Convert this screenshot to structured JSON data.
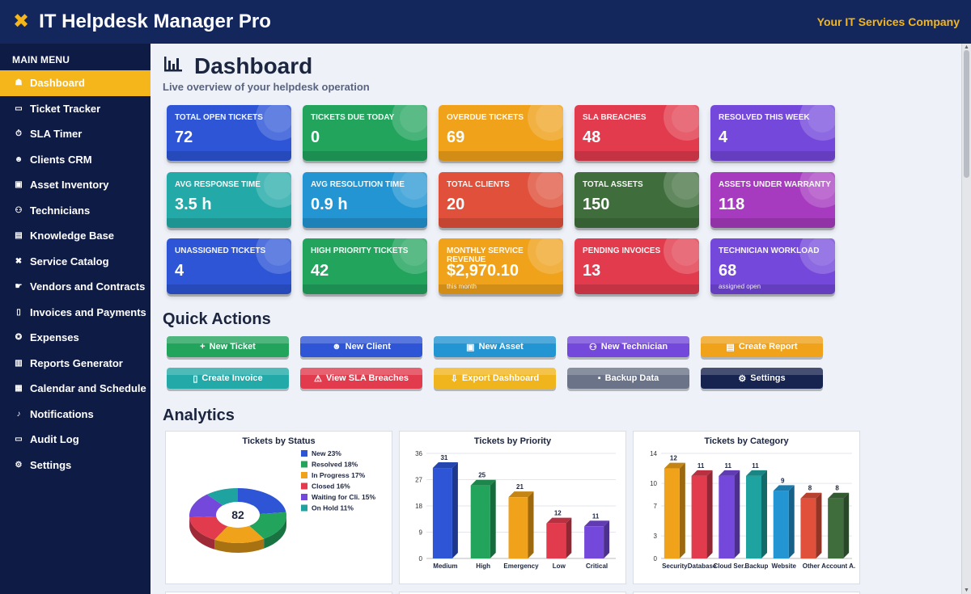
{
  "header": {
    "title": "IT Helpdesk Manager Pro",
    "company": "Your IT Services Company",
    "logo_icon": "tools-icon"
  },
  "sidebar": {
    "heading": "MAIN MENU",
    "items": [
      {
        "label": "Dashboard",
        "icon": "home-icon",
        "glyph": "☗",
        "active": true
      },
      {
        "label": "Ticket Tracker",
        "icon": "ticket-icon",
        "glyph": "▭"
      },
      {
        "label": "SLA Timer",
        "icon": "timer-icon",
        "glyph": "⏱"
      },
      {
        "label": "Clients CRM",
        "icon": "clients-icon",
        "glyph": "☻"
      },
      {
        "label": "Asset Inventory",
        "icon": "asset-icon",
        "glyph": "▣"
      },
      {
        "label": "Technicians",
        "icon": "technician-icon",
        "glyph": "⚇"
      },
      {
        "label": "Knowledge Base",
        "icon": "book-icon",
        "glyph": "▤"
      },
      {
        "label": "Service Catalog",
        "icon": "wrench-icon",
        "glyph": "✖"
      },
      {
        "label": "Vendors and Contracts",
        "icon": "handshake-icon",
        "glyph": "☛"
      },
      {
        "label": "Invoices and Payments",
        "icon": "invoice-icon",
        "glyph": "▯"
      },
      {
        "label": "Expenses",
        "icon": "expenses-icon",
        "glyph": "✪"
      },
      {
        "label": "Reports Generator",
        "icon": "chart-icon",
        "glyph": "▥"
      },
      {
        "label": "Calendar and Schedule",
        "icon": "calendar-icon",
        "glyph": "▦"
      },
      {
        "label": "Notifications",
        "icon": "bell-icon",
        "glyph": "♪"
      },
      {
        "label": "Audit Log",
        "icon": "log-icon",
        "glyph": "▭"
      },
      {
        "label": "Settings",
        "icon": "gear-icon",
        "glyph": "⚙"
      }
    ]
  },
  "page": {
    "title": "Dashboard",
    "subtitle": "Live overview of your helpdesk operation",
    "title_icon": "chart-bar-icon"
  },
  "kpis": [
    {
      "label": "TOTAL OPEN TICKETS",
      "value": "72",
      "color": "#2d55d6"
    },
    {
      "label": "TICKETS DUE TODAY",
      "value": "0",
      "color": "#22a45d"
    },
    {
      "label": "OVERDUE TICKETS",
      "value": "69",
      "color": "#f0a21a"
    },
    {
      "label": "SLA BREACHES",
      "value": "48",
      "color": "#e23b4e"
    },
    {
      "label": "RESOLVED THIS WEEK",
      "value": "4",
      "color": "#7548dc"
    },
    {
      "label": "AVG RESPONSE TIME",
      "value": "3.5 h",
      "color": "#23aaa8"
    },
    {
      "label": "AVG RESOLUTION TIME",
      "value": "0.9 h",
      "color": "#2395d3"
    },
    {
      "label": "TOTAL CLIENTS",
      "value": "20",
      "color": "#e0503a"
    },
    {
      "label": "TOTAL ASSETS",
      "value": "150",
      "color": "#3f6e3c"
    },
    {
      "label": "ASSETS UNDER WARRANTY",
      "value": "118",
      "color": "#a73bc0"
    },
    {
      "label": "UNASSIGNED TICKETS",
      "value": "4",
      "color": "#2d55d6"
    },
    {
      "label": "HIGH PRIORITY TICKETS",
      "value": "42",
      "color": "#22a45d"
    },
    {
      "label": "MONTHLY SERVICE REVENUE",
      "value": "$2,970.10",
      "note": "this month",
      "color": "#f0a21a"
    },
    {
      "label": "PENDING INVOICES",
      "value": "13",
      "color": "#e23b4e"
    },
    {
      "label": "TECHNICIAN WORKLOAD",
      "value": "68",
      "note": "assigned open",
      "color": "#7548dc"
    }
  ],
  "quick_actions": {
    "title": "Quick Actions",
    "buttons": [
      {
        "label": "New Ticket",
        "icon": "plus-icon",
        "glyph": "+",
        "color": "#22a45d"
      },
      {
        "label": "New Client",
        "icon": "clients-icon",
        "glyph": "☻",
        "color": "#2d55d6"
      },
      {
        "label": "New Asset",
        "icon": "asset-icon",
        "glyph": "▣",
        "color": "#2395d3"
      },
      {
        "label": "New Technician",
        "icon": "technician-icon",
        "glyph": "⚇",
        "color": "#7548dc"
      },
      {
        "label": "Create Report",
        "icon": "report-icon",
        "glyph": "▤",
        "color": "#f0a21a"
      },
      {
        "label": "Create Invoice",
        "icon": "invoice-icon",
        "glyph": "▯",
        "color": "#23aaa8"
      },
      {
        "label": "View SLA Breaches",
        "icon": "warning-icon",
        "glyph": "⚠",
        "color": "#e23b4e"
      },
      {
        "label": "Export Dashboard",
        "icon": "export-icon",
        "glyph": "⇩",
        "color": "#f0b41d"
      },
      {
        "label": "Backup Data",
        "icon": "save-icon",
        "glyph": "▪",
        "color": "#6b7388"
      },
      {
        "label": "Settings",
        "icon": "gear-icon",
        "glyph": "⚙",
        "color": "#16244f"
      }
    ]
  },
  "analytics_title": "Analytics",
  "chart_data": [
    {
      "type": "pie",
      "title": "Tickets by Status",
      "center_label": "82",
      "slices": [
        {
          "name": "New",
          "pct": "23%",
          "value": 23,
          "color": "#2d55d6"
        },
        {
          "name": "Resolved",
          "pct": "18%",
          "value": 18,
          "color": "#22a45d"
        },
        {
          "name": "In Progress",
          "pct": "17%",
          "value": 17,
          "color": "#f0a21a"
        },
        {
          "name": "Closed",
          "pct": "16%",
          "value": 16,
          "color": "#e23b4e"
        },
        {
          "name": "Waiting for Cli.",
          "pct": "15%",
          "value": 15,
          "color": "#7548dc"
        },
        {
          "name": "On Hold",
          "pct": "11%",
          "value": 11,
          "color": "#1fa3a0"
        }
      ],
      "legend": "right"
    },
    {
      "type": "bar",
      "title": "Tickets by Priority",
      "categories": [
        "Medium",
        "High",
        "Emergency",
        "Low",
        "Critical"
      ],
      "values": [
        31,
        25,
        21,
        12,
        11
      ],
      "colors": [
        "#2d55d6",
        "#22a45d",
        "#f0a21a",
        "#e23b4e",
        "#7548dc"
      ],
      "ylim": [
        0,
        36
      ],
      "yticks": [
        0,
        9,
        18,
        27,
        36
      ],
      "grid": true
    },
    {
      "type": "bar",
      "title": "Tickets by Category",
      "categories": [
        "Security",
        "Database",
        "Cloud Ser.",
        "Backup",
        "Website",
        "Other",
        "Account A."
      ],
      "values": [
        12,
        11,
        11,
        11,
        9,
        8,
        8
      ],
      "colors": [
        "#f0a21a",
        "#e23b4e",
        "#7548dc",
        "#1fa3a0",
        "#2395d3",
        "#e0503a",
        "#3f6e3c"
      ],
      "ylim": [
        0,
        14
      ],
      "yticks": [
        0,
        3,
        7,
        10,
        14
      ],
      "grid": true
    }
  ]
}
